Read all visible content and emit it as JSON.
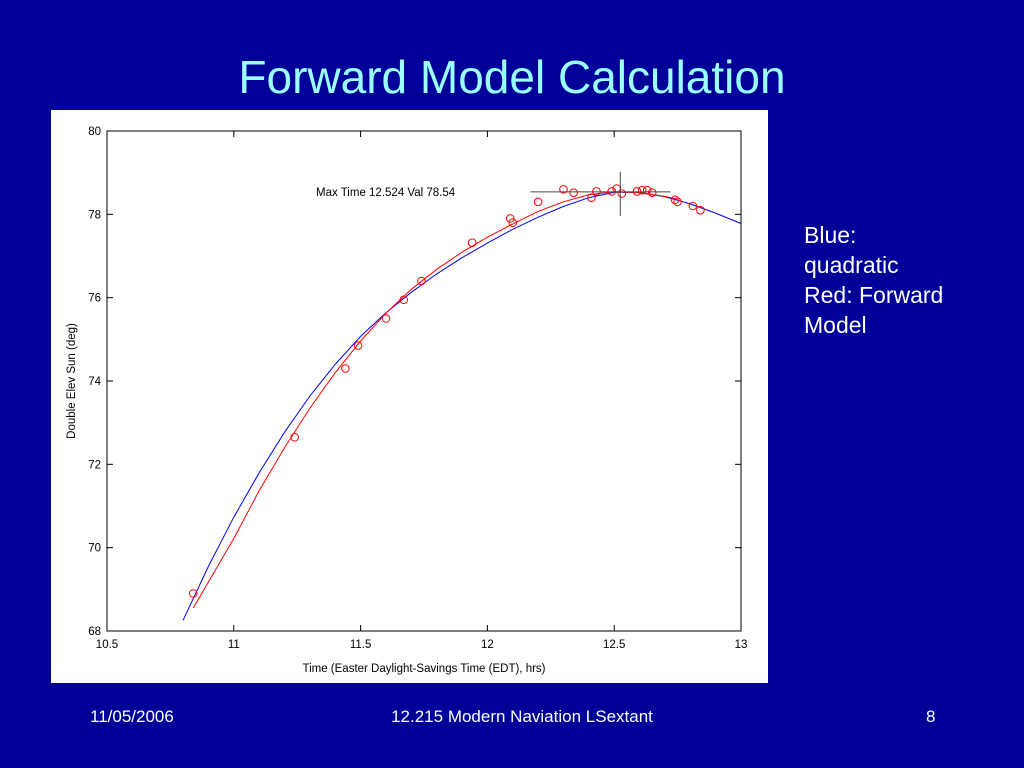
{
  "slide": {
    "title": "Forward Model Calculation",
    "note_lines": [
      "Blue:",
      "quadratic",
      "Red: Forward",
      "Model"
    ],
    "footer_date": "11/05/2006",
    "footer_title": "12.215 Modern Naviation LSextant",
    "footer_page": "8"
  },
  "colors": {
    "background": "#000099",
    "title": "#99ffff",
    "quadratic_line": "#0000ff",
    "forward_model": "#ff0000",
    "axes": "#000000"
  },
  "chart_data": {
    "type": "line",
    "xlabel": "Time (Easter Daylight-Savings Time (EDT), hrs)",
    "ylabel": "Double Elev Sun (deg)",
    "xlim": [
      10.5,
      13
    ],
    "ylim": [
      68,
      80
    ],
    "xticks": [
      "10.5",
      "11",
      "11.5",
      "12",
      "12.5",
      "13"
    ],
    "yticks": [
      "68",
      "70",
      "72",
      "74",
      "76",
      "78",
      "80"
    ],
    "grid": false,
    "annotation": "Max Time 12.524 Val  78.54",
    "max_marker": {
      "x": 12.524,
      "y": 78.54
    },
    "series": [
      {
        "kind": "curve",
        "x": [
          10.8,
          10.9,
          11.0,
          11.1,
          11.2,
          11.3,
          11.4,
          11.5,
          11.6,
          11.7,
          11.8,
          11.9,
          12.0,
          12.1,
          12.2,
          12.3,
          12.4,
          12.5,
          12.6,
          12.7,
          12.8,
          12.9,
          13.0
        ],
        "y": [
          68.26,
          69.55,
          70.73,
          71.8,
          72.77,
          73.64,
          74.4,
          75.07,
          75.64,
          76.13,
          76.57,
          76.96,
          77.31,
          77.64,
          77.93,
          78.19,
          78.4,
          78.53,
          78.53,
          78.42,
          78.25,
          78.03,
          77.78
        ]
      },
      {
        "kind": "curve",
        "x": [
          10.84,
          11.0,
          11.1,
          11.2,
          11.3,
          11.4,
          11.5,
          11.6,
          11.7,
          11.8,
          11.9,
          12.0,
          12.1,
          12.2,
          12.3,
          12.4,
          12.5,
          12.6,
          12.7,
          12.75
        ],
        "y": [
          68.55,
          70.22,
          71.37,
          72.4,
          73.35,
          74.2,
          74.96,
          75.63,
          76.2,
          76.68,
          77.09,
          77.45,
          77.77,
          78.07,
          78.3,
          78.47,
          78.54,
          78.52,
          78.43,
          78.36
        ]
      },
      {
        "kind": "points",
        "x": [
          10.84,
          11.24,
          11.44,
          11.49,
          11.6,
          11.67,
          11.74,
          11.94,
          12.09,
          12.1,
          12.2,
          12.3,
          12.34,
          12.41,
          12.43,
          12.49,
          12.51,
          12.53,
          12.59,
          12.61,
          12.63,
          12.65,
          12.74,
          12.75,
          12.81,
          12.84
        ],
        "y": [
          68.9,
          72.65,
          74.3,
          74.85,
          75.5,
          75.95,
          76.4,
          77.32,
          77.9,
          77.8,
          78.3,
          78.6,
          78.52,
          78.4,
          78.55,
          78.55,
          78.62,
          78.5,
          78.55,
          78.58,
          78.58,
          78.52,
          78.35,
          78.3,
          78.2,
          78.1
        ]
      }
    ]
  }
}
